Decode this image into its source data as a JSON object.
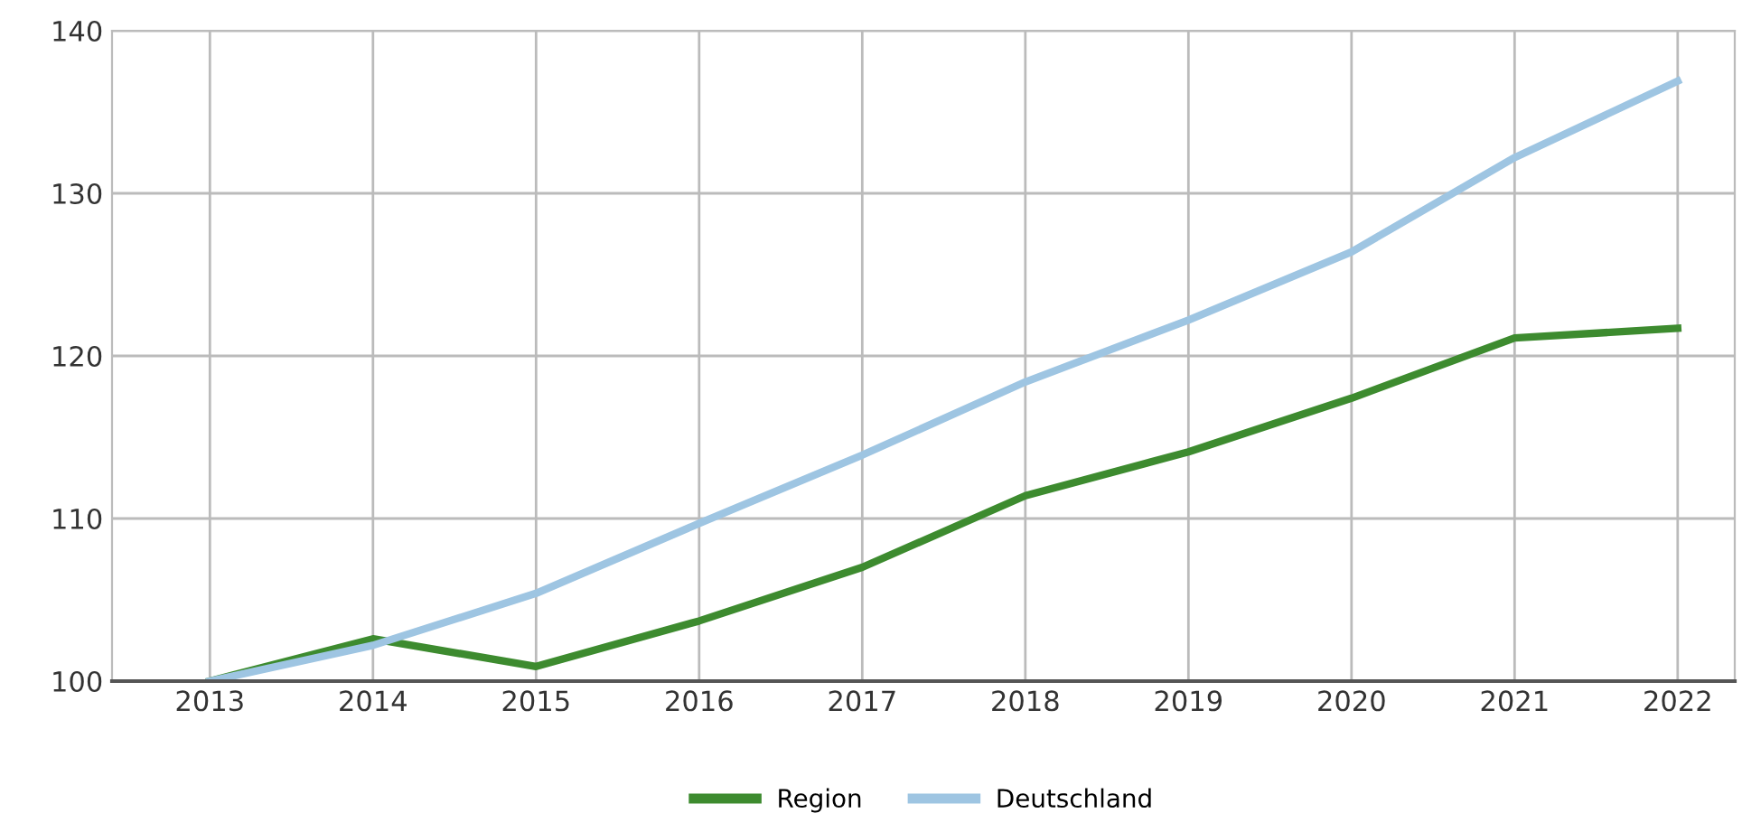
{
  "chart_data": {
    "type": "line",
    "categories": [
      "2013",
      "2014",
      "2015",
      "2016",
      "2017",
      "2018",
      "2019",
      "2020",
      "2021",
      "2022"
    ],
    "series": [
      {
        "name": "Region",
        "color": "#3d8b2f",
        "values": [
          100,
          102.6,
          100.9,
          103.7,
          107.0,
          111.4,
          114.1,
          117.4,
          121.1,
          121.7
        ]
      },
      {
        "name": "Deutschland",
        "color": "#9ec5e2",
        "values": [
          100,
          102.2,
          105.4,
          109.7,
          113.9,
          118.4,
          122.2,
          126.4,
          132.2,
          136.9
        ]
      }
    ],
    "ylim": [
      100,
      140
    ],
    "yticks": [
      100,
      110,
      120,
      130,
      140
    ],
    "grid": true,
    "legend": "bottom",
    "marker": "none",
    "line_style": "solid"
  }
}
